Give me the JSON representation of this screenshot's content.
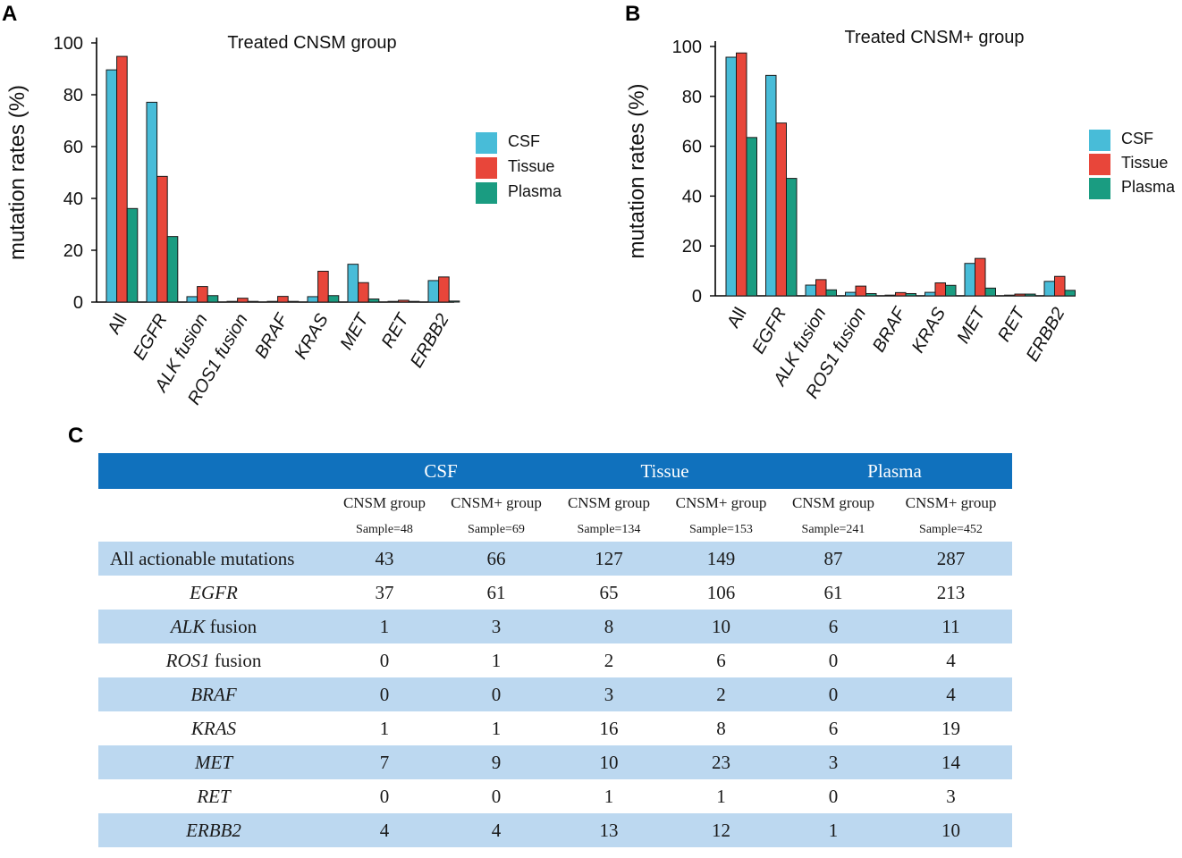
{
  "panels": {
    "a": "A",
    "b": "B",
    "c": "C"
  },
  "chart_data": [
    {
      "type": "bar",
      "title": "Treated  CNSM group",
      "ylabel": "mutation rates (%)",
      "xlabel": "",
      "ylim": [
        0,
        100
      ],
      "yticks": [
        0,
        20,
        40,
        60,
        80,
        100
      ],
      "categories": [
        "All",
        "EGFR",
        "ALK fusion",
        "ROS1 fusion",
        "BRAF",
        "KRAS",
        "MET",
        "RET",
        "ERBB2"
      ],
      "series": [
        {
          "name": "CSF",
          "color": "#48bcd8",
          "values": [
            89.6,
            77.1,
            2.1,
            0,
            0,
            2.1,
            14.6,
            0,
            8.3
          ]
        },
        {
          "name": "Tissue",
          "color": "#e8463a",
          "values": [
            94.8,
            48.5,
            6.0,
            1.5,
            2.2,
            11.9,
            7.5,
            0.7,
            9.7
          ]
        },
        {
          "name": "Plasma",
          "color": "#1a9c81",
          "values": [
            36.1,
            25.3,
            2.5,
            0,
            0,
            2.5,
            1.2,
            0,
            0.4
          ]
        }
      ],
      "legend": [
        "CSF",
        "Tissue",
        "Plasma"
      ]
    },
    {
      "type": "bar",
      "title": "Treated  CNSM+ group",
      "ylabel": "mutation rates (%)",
      "xlabel": "",
      "ylim": [
        0,
        100
      ],
      "yticks": [
        0,
        20,
        40,
        60,
        80,
        100
      ],
      "categories": [
        "All",
        "EGFR",
        "ALK fusion",
        "ROS1 fusion",
        "BRAF",
        "KRAS",
        "MET",
        "RET",
        "ERBB2"
      ],
      "series": [
        {
          "name": "CSF",
          "color": "#48bcd8",
          "values": [
            95.7,
            88.4,
            4.3,
            1.4,
            0,
            1.4,
            13.0,
            0,
            5.8
          ]
        },
        {
          "name": "Tissue",
          "color": "#e8463a",
          "values": [
            97.4,
            69.3,
            6.5,
            3.9,
            1.3,
            5.2,
            15.0,
            0.7,
            7.8
          ]
        },
        {
          "name": "Plasma",
          "color": "#1a9c81",
          "values": [
            63.5,
            47.1,
            2.4,
            0.9,
            0.9,
            4.2,
            3.1,
            0.7,
            2.2
          ]
        }
      ],
      "legend": [
        "CSF",
        "Tissue",
        "Plasma"
      ]
    }
  ],
  "table": {
    "groups": [
      "CSF",
      "Tissue",
      "Plasma"
    ],
    "subheaders": [
      "CNSM group",
      "CNSM+ group",
      "CNSM group",
      "CNSM+ group",
      "CNSM group",
      "CNSM+ group"
    ],
    "samples": [
      "Sample=48",
      "Sample=69",
      "Sample=134",
      "Sample=153",
      "Sample=241",
      "Sample=452"
    ],
    "rows": [
      {
        "label": "All actionable mutations",
        "gene": "",
        "suffix": "",
        "values": [
          "43",
          "66",
          "127",
          "149",
          "87",
          "287"
        ]
      },
      {
        "label": "",
        "gene": "EGFR",
        "suffix": "",
        "values": [
          "37",
          "61",
          "65",
          "106",
          "61",
          "213"
        ]
      },
      {
        "label": "",
        "gene": "ALK",
        "suffix": " fusion",
        "values": [
          "1",
          "3",
          "8",
          "10",
          "6",
          "11"
        ]
      },
      {
        "label": "",
        "gene": "ROS1",
        "suffix": " fusion",
        "values": [
          "0",
          "1",
          "2",
          "6",
          "0",
          "4"
        ]
      },
      {
        "label": "",
        "gene": "BRAF",
        "suffix": "",
        "values": [
          "0",
          "0",
          "3",
          "2",
          "0",
          "4"
        ]
      },
      {
        "label": "",
        "gene": "KRAS",
        "suffix": "",
        "values": [
          "1",
          "1",
          "16",
          "8",
          "6",
          "19"
        ]
      },
      {
        "label": "",
        "gene": "MET",
        "suffix": "",
        "values": [
          "7",
          "9",
          "10",
          "23",
          "3",
          "14"
        ]
      },
      {
        "label": "",
        "gene": "RET",
        "suffix": "",
        "values": [
          "0",
          "0",
          "1",
          "1",
          "0",
          "3"
        ]
      },
      {
        "label": "",
        "gene": "ERBB2",
        "suffix": "",
        "values": [
          "4",
          "4",
          "13",
          "12",
          "1",
          "10"
        ]
      }
    ]
  }
}
